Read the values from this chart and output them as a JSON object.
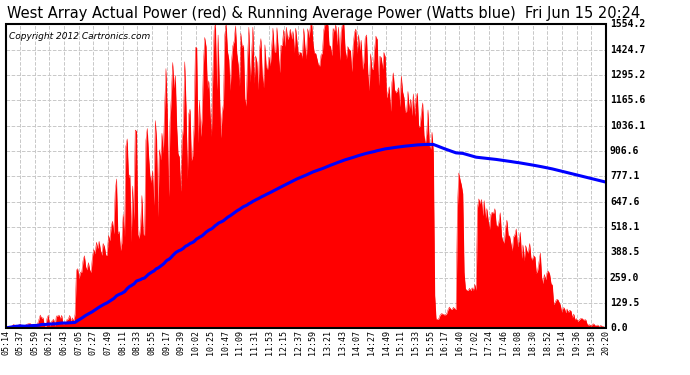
{
  "title": "West Array Actual Power (red) & Running Average Power (Watts blue)  Fri Jun 15 20:24",
  "copyright": "Copyright 2012 Cartronics.com",
  "background_color": "#ffffff",
  "plot_bg_color": "#ffffff",
  "grid_color": "#c8c8c8",
  "yticks": [
    0.0,
    129.5,
    259.0,
    388.5,
    518.1,
    647.6,
    777.1,
    906.6,
    1036.1,
    1165.6,
    1295.2,
    1424.7,
    1554.2
  ],
  "ymax": 1554.2,
  "ymin": 0.0,
  "x_labels": [
    "05:14",
    "05:37",
    "05:59",
    "06:21",
    "06:43",
    "07:05",
    "07:27",
    "07:49",
    "08:11",
    "08:33",
    "08:55",
    "09:17",
    "09:39",
    "10:02",
    "10:25",
    "10:47",
    "11:09",
    "11:31",
    "11:53",
    "12:15",
    "12:37",
    "12:59",
    "13:21",
    "13:43",
    "14:07",
    "14:27",
    "14:49",
    "15:11",
    "15:33",
    "15:55",
    "16:17",
    "16:40",
    "17:02",
    "17:24",
    "17:46",
    "18:08",
    "18:30",
    "18:52",
    "19:14",
    "19:36",
    "19:58",
    "20:20"
  ],
  "red_color": "#ff0000",
  "blue_color": "#0000ff",
  "title_fontsize": 10.5,
  "copyright_fontsize": 6.5,
  "tick_fontsize": 6.0,
  "ytick_fontsize": 7.0
}
